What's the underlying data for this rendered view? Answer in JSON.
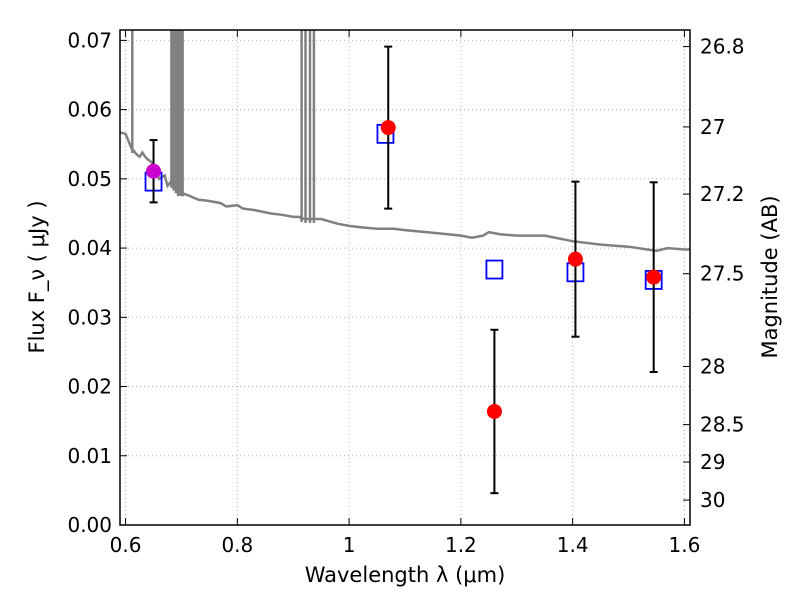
{
  "chart_data": {
    "type": "scatter",
    "xlabel": "Wavelength  λ (μm)",
    "ylabel": "Flux  F_ν  ( μJy )",
    "ylabel_right": "Magnitude (AB)",
    "xlim": [
      0.59,
      1.61
    ],
    "ylim": [
      0.0,
      0.0715
    ],
    "grid": true,
    "x_ticks": [
      0.6,
      0.8,
      1.0,
      1.2,
      1.4,
      1.6
    ],
    "x_tick_labels": [
      "0.6",
      "0.8",
      "1",
      "1.2",
      "1.4",
      "1.6"
    ],
    "y_ticks": [
      0.0,
      0.01,
      0.02,
      0.03,
      0.04,
      0.05,
      0.06,
      0.07
    ],
    "y_tick_labels": [
      "0.00",
      "0.01",
      "0.02",
      "0.03",
      "0.04",
      "0.05",
      "0.06",
      "0.07"
    ],
    "right_ticks_flux": [
      0.0691,
      0.0575,
      0.0478,
      0.0363,
      0.0229,
      0.0145,
      0.0091,
      0.0036
    ],
    "right_tick_labels": [
      "26.8",
      "27",
      "27.2",
      "27.5",
      "28",
      "28.5",
      "29",
      "30"
    ],
    "colors": {
      "model": "#808080",
      "photometry": "#ff0000",
      "highlight": "#cc00cc",
      "model_flux": "#0000ff",
      "errorbar": "#000000",
      "grid": "#b0b0b0"
    },
    "model_spectrum": {
      "x": [
        0.59,
        0.6,
        0.605,
        0.61,
        0.615,
        0.62,
        0.625,
        0.63,
        0.635,
        0.64,
        0.645,
        0.65,
        0.655,
        0.66,
        0.67,
        0.675,
        0.68,
        0.69,
        0.695,
        0.7,
        0.705,
        0.71,
        0.73,
        0.75,
        0.77,
        0.78,
        0.8,
        0.81,
        0.83,
        0.86,
        0.88,
        0.9,
        0.91,
        0.92,
        0.95,
        0.98,
        1.0,
        1.02,
        1.05,
        1.08,
        1.1,
        1.15,
        1.2,
        1.22,
        1.24,
        1.25,
        1.27,
        1.3,
        1.35,
        1.4,
        1.45,
        1.5,
        1.55,
        1.57,
        1.6,
        1.61
      ],
      "y": [
        0.0567,
        0.0565,
        0.0555,
        0.0545,
        0.054,
        0.0535,
        0.0532,
        0.0538,
        0.0532,
        0.0528,
        0.0525,
        0.052,
        0.0512,
        0.05,
        0.0505,
        0.049,
        0.0495,
        0.0485,
        0.048,
        0.0482,
        0.0478,
        0.0477,
        0.047,
        0.0468,
        0.0465,
        0.046,
        0.0462,
        0.0457,
        0.0455,
        0.045,
        0.0448,
        0.0445,
        0.0445,
        0.0442,
        0.0442,
        0.0435,
        0.0432,
        0.043,
        0.0428,
        0.0428,
        0.0426,
        0.0422,
        0.0418,
        0.0415,
        0.0418,
        0.0423,
        0.042,
        0.0418,
        0.0418,
        0.041,
        0.0405,
        0.0402,
        0.0396,
        0.04,
        0.0398,
        0.0398
      ],
      "spikes_x": [
        0.612,
        0.682,
        0.686,
        0.69,
        0.694,
        0.698,
        0.702,
        0.915,
        0.922,
        0.93,
        0.937
      ]
    },
    "photometry": [
      {
        "x": 0.65,
        "y": 0.0511,
        "yerr": 0.0045
      },
      {
        "x": 1.07,
        "y": 0.0574,
        "yerr": 0.0117
      },
      {
        "x": 1.26,
        "y": 0.0164,
        "yerr": 0.0118
      },
      {
        "x": 1.405,
        "y": 0.0384,
        "yerr": 0.0112
      },
      {
        "x": 1.545,
        "y": 0.0358,
        "yerr": 0.0137
      }
    ],
    "model_flux": [
      {
        "x": 0.65,
        "y": 0.0496
      },
      {
        "x": 1.065,
        "y": 0.0565
      },
      {
        "x": 1.26,
        "y": 0.0369
      },
      {
        "x": 1.405,
        "y": 0.0365
      },
      {
        "x": 1.545,
        "y": 0.0354
      }
    ]
  }
}
